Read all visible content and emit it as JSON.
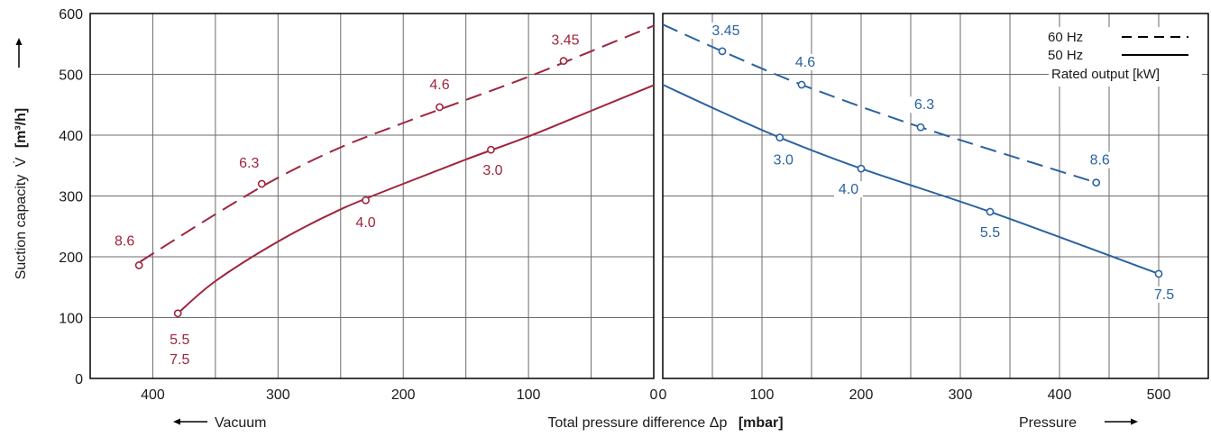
{
  "chart_data": {
    "type": "line",
    "ylabel": "Suction capacity",
    "ylabel_symbol": "V̇",
    "ylabel_unit": "[m³/h]",
    "xlabel": "Total pressure difference  Δp",
    "xlabel_unit": "[mbar]",
    "vacuum_label": "Vacuum",
    "pressure_label": "Pressure",
    "ylim": [
      0,
      600
    ],
    "y_ticks": [
      "0",
      "100",
      "200",
      "300",
      "400",
      "500",
      "600"
    ],
    "colors": {
      "vacuum": "#a0243c",
      "pressure": "#2a62a0",
      "grid": "#6b6b6b"
    },
    "legend": {
      "items": [
        "60 Hz",
        "50 Hz",
        "Rated output [kW]"
      ],
      "placement": "top-right"
    },
    "panels": [
      {
        "name": "Vacuum",
        "xlim": [
          450,
          0
        ],
        "x_ticks": [
          "400",
          "300",
          "200",
          "100",
          "0"
        ],
        "color": "#a0243c",
        "series": [
          {
            "name": "60 Hz",
            "style": "dashed",
            "curve": [
              [
                410,
                192
              ],
              [
                350,
                270
              ],
              [
                300,
                330
              ],
              [
                250,
                380
              ],
              [
                200,
                420
              ],
              [
                150,
                458
              ],
              [
                100,
                496
              ],
              [
                50,
                538
              ],
              [
                0,
                580
              ]
            ],
            "points": [
              {
                "x": 411,
                "y": 186,
                "label": "8.6"
              },
              {
                "x": 313,
                "y": 320,
                "label": "6.3"
              },
              {
                "x": 171,
                "y": 446,
                "label": "4.6"
              },
              {
                "x": 72,
                "y": 522,
                "label": "3.45"
              }
            ]
          },
          {
            "name": "50 Hz",
            "style": "solid",
            "curve": [
              [
                380,
                107
              ],
              [
                350,
                160
              ],
              [
                300,
                225
              ],
              [
                250,
                278
              ],
              [
                200,
                320
              ],
              [
                150,
                360
              ],
              [
                100,
                398
              ],
              [
                50,
                440
              ],
              [
                0,
                482
              ]
            ],
            "points": [
              {
                "x": 380,
                "y": 107,
                "label": "5.5",
                "label2": "7.5"
              },
              {
                "x": 230,
                "y": 293,
                "label": "4.0"
              },
              {
                "x": 130,
                "y": 376,
                "label": "3.0"
              }
            ]
          }
        ]
      },
      {
        "name": "Pressure",
        "xlim": [
          0,
          550
        ],
        "x_ticks": [
          "0",
          "100",
          "200",
          "300",
          "400",
          "500"
        ],
        "color": "#2a62a0",
        "series": [
          {
            "name": "60 Hz",
            "style": "dashed",
            "curve": [
              [
                0,
                582
              ],
              [
                60,
                538
              ],
              [
                140,
                483
              ],
              [
                260,
                413
              ],
              [
                437,
                322
              ]
            ],
            "points": [
              {
                "x": 60,
                "y": 538,
                "label": "3.45"
              },
              {
                "x": 140,
                "y": 483,
                "label": "4.6"
              },
              {
                "x": 260,
                "y": 413,
                "label": "6.3"
              },
              {
                "x": 437,
                "y": 322,
                "label": "8.6"
              }
            ]
          },
          {
            "name": "50 Hz",
            "style": "solid",
            "curve": [
              [
                0,
                483
              ],
              [
                50,
                445
              ],
              [
                118,
                396
              ],
              [
                200,
                345
              ],
              [
                330,
                274
              ],
              [
                500,
                172
              ]
            ],
            "points": [
              {
                "x": 118,
                "y": 396,
                "label": "3.0"
              },
              {
                "x": 200,
                "y": 345,
                "label": "4.0"
              },
              {
                "x": 330,
                "y": 274,
                "label": "5.5"
              },
              {
                "x": 500,
                "y": 172,
                "label": "7.5"
              }
            ]
          }
        ]
      }
    ]
  }
}
